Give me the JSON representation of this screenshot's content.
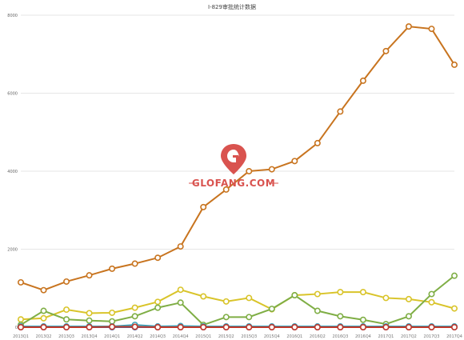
{
  "chart_data": {
    "type": "line",
    "title": "I-829审批统计数据",
    "xlabel": "",
    "ylabel": "",
    "ylim": [
      0,
      8000
    ],
    "yticks": [
      0,
      2000,
      4000,
      6000,
      8000
    ],
    "grid": true,
    "legend": "none",
    "categories": [
      "2013Q1",
      "2013Q2",
      "2013Q3",
      "2013Q4",
      "2014Q1",
      "2014Q2",
      "2014Q3",
      "2014Q4",
      "2015Q1",
      "2015Q2",
      "2015Q3",
      "2015Q4",
      "2016Q1",
      "2016Q2",
      "2016Q3",
      "2016Q4",
      "2017Q1",
      "2017Q2",
      "2017Q3",
      "2017Q4"
    ],
    "tick_labels": [
      "2013Q1",
      "2013Q2",
      "2013Q3",
      "2013Q4",
      "2014Q1",
      "2014Q2",
      "2014Q3",
      "2014Q4",
      "2015Q1",
      "2015Q2",
      "2015Q3",
      "2015Q4",
      "2016Q1",
      "2016Q2",
      "2016Q3",
      "2016Q4",
      "2017Q1",
      "2017Q2",
      "2017Q3",
      "2017Q4"
    ],
    "series": [
      {
        "color": "#c8741f",
        "values": [
          1150,
          950,
          1170,
          1330,
          1500,
          1630,
          1780,
          2070,
          3080,
          3530,
          4000,
          4050,
          4260,
          4720,
          5530,
          6320,
          7080,
          7710,
          7650,
          6730
        ]
      },
      {
        "color": "#d9c42a",
        "values": [
          200,
          230,
          450,
          360,
          370,
          500,
          650,
          960,
          790,
          660,
          750,
          460,
          820,
          850,
          900,
          900,
          750,
          720,
          640,
          480
        ]
      },
      {
        "color": "#7fae45",
        "values": [
          60,
          420,
          200,
          170,
          150,
          280,
          500,
          630,
          60,
          260,
          260,
          470,
          820,
          420,
          280,
          190,
          80,
          280,
          850,
          1320
        ]
      },
      {
        "color": "#3aa0b8",
        "values": [
          20,
          20,
          20,
          20,
          20,
          60,
          20,
          30,
          20,
          20,
          20,
          20,
          20,
          20,
          20,
          20,
          20,
          20,
          20,
          20
        ]
      },
      {
        "color": "#2f6ec0",
        "values": [
          0,
          0,
          0,
          0,
          0,
          0,
          0,
          0,
          0,
          0,
          0,
          0,
          0,
          0,
          0,
          0,
          0,
          0,
          0,
          0
        ]
      },
      {
        "color": "#c0392b",
        "values": [
          0,
          0,
          0,
          0,
          10,
          10,
          0,
          0,
          0,
          0,
          0,
          0,
          0,
          0,
          0,
          0,
          0,
          0,
          0,
          0
        ]
      }
    ]
  },
  "watermark": {
    "text": "GLOFANG.COM",
    "color": "#d9534f"
  }
}
